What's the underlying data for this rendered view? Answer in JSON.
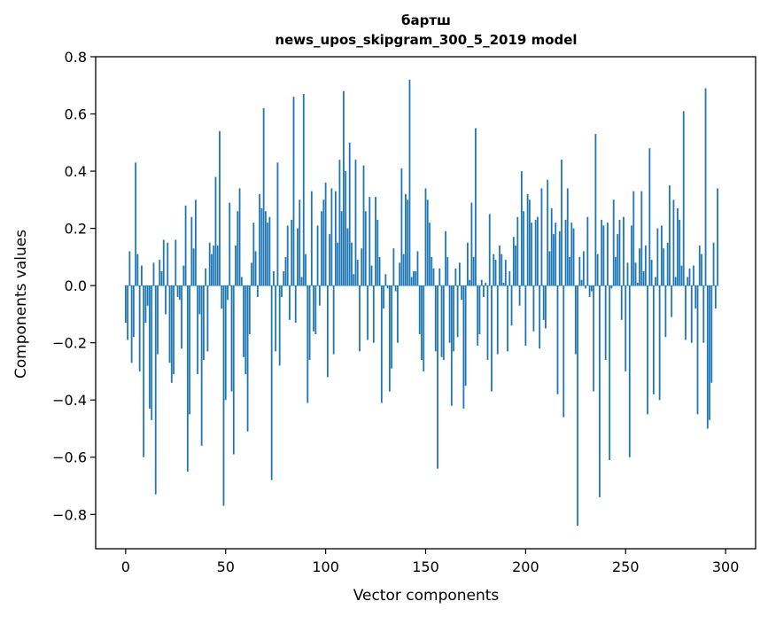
{
  "chart_data": {
    "type": "bar",
    "title": "бартш",
    "subtitle": "news_upos_skipgram_300_5_2019 model",
    "xlabel": "Vector components",
    "ylabel": "Components values",
    "xlim": [
      -15,
      315
    ],
    "ylim": [
      -0.92,
      0.8
    ],
    "xticks": [
      0,
      50,
      100,
      150,
      200,
      250,
      300
    ],
    "xtick_labels": [
      "0",
      "50",
      "100",
      "150",
      "200",
      "250",
      "300"
    ],
    "yticks": [
      -0.8,
      -0.6,
      -0.4,
      -0.2,
      0.0,
      0.2,
      0.4,
      0.6,
      0.8
    ],
    "ytick_labels": [
      "−0.8",
      "−0.6",
      "−0.4",
      "−0.2",
      "0.0",
      "0.2",
      "0.4",
      "0.6",
      "0.8"
    ],
    "bar_color": "#1f77b4",
    "grid": false,
    "values": [
      -0.13,
      -0.19,
      0.12,
      -0.27,
      -0.18,
      0.43,
      0.11,
      -0.3,
      0.07,
      -0.6,
      -0.13,
      -0.07,
      -0.43,
      -0.47,
      0.08,
      -0.73,
      -0.24,
      0.09,
      0.05,
      0.16,
      -0.1,
      0.15,
      -0.27,
      -0.34,
      -0.31,
      0.16,
      -0.04,
      -0.05,
      -0.22,
      0.07,
      0.28,
      -0.65,
      -0.45,
      0.24,
      0.13,
      0.3,
      -0.31,
      -0.1,
      -0.56,
      -0.26,
      0.06,
      -0.23,
      0.15,
      0.11,
      0.14,
      0.38,
      0.14,
      0.54,
      -0.08,
      -0.77,
      -0.4,
      -0.05,
      0.29,
      -0.37,
      -0.59,
      0.14,
      0.26,
      0.34,
      0.03,
      -0.25,
      -0.31,
      -0.51,
      -0.17,
      0.08,
      0.22,
      0.12,
      -0.04,
      0.32,
      0.27,
      0.62,
      0.26,
      0.22,
      0.24,
      -0.68,
      0.05,
      -0.23,
      0.43,
      -0.28,
      -0.04,
      0.05,
      0.1,
      0.21,
      -0.12,
      0.23,
      0.66,
      -0.13,
      0.2,
      0.3,
      0.03,
      0.67,
      0.11,
      -0.41,
      -0.26,
      0.33,
      -0.16,
      -0.17,
      0.21,
      -0.07,
      0.26,
      0.3,
      0.36,
      -0.32,
      0.18,
      0.34,
      -0.24,
      0.33,
      0.15,
      0.44,
      0.26,
      0.68,
      0.4,
      0.2,
      0.5,
      0.15,
      0.04,
      0.44,
      0.09,
      -0.23,
      0.13,
      0.42,
      0.26,
      -0.19,
      0.31,
      0.07,
      -0.2,
      0.31,
      0.23,
      0.1,
      -0.41,
      -0.08,
      0.04,
      -0.01,
      -0.37,
      -0.29,
      0.13,
      -0.02,
      -0.2,
      0.08,
      0.41,
      0.11,
      0.32,
      0.3,
      0.72,
      0.03,
      0.05,
      0.05,
      0.12,
      -0.17,
      -0.26,
      -0.3,
      0.34,
      0.3,
      0.22,
      0.1,
      0.06,
      -0.23,
      -0.64,
      0.06,
      -0.25,
      -0.26,
      0.19,
      0.1,
      -0.2,
      -0.42,
      -0.23,
      0.06,
      -0.18,
      0.08,
      -0.05,
      -0.43,
      -0.35,
      0.15,
      0.02,
      0.29,
      0.1,
      0.55,
      -0.21,
      -0.17,
      0.02,
      -0.04,
      0.01,
      -0.26,
      0.25,
      -0.37,
      0.11,
      0.09,
      -0.24,
      0.14,
      0.11,
      0.01,
      0.09,
      -0.23,
      0.05,
      -0.14,
      0.17,
      0.14,
      0.24,
      -0.07,
      0.4,
      0.26,
      -0.21,
      0.32,
      0.3,
      0.22,
      -0.16,
      0.23,
      0.24,
      -0.22,
      0.34,
      -0.12,
      -0.15,
      0.37,
      0.12,
      0.27,
      0.18,
      0.22,
      -0.38,
      0.19,
      0.44,
      -0.46,
      0.23,
      0.34,
      0.1,
      0.22,
      0.2,
      -0.24,
      -0.84,
      0.1,
      0.02,
      0.12,
      -0.01,
      0.24,
      -0.04,
      -0.02,
      -0.37,
      0.53,
      0.11,
      -0.74,
      0.23,
      0.21,
      -0.26,
      0.22,
      -0.61,
      -0.01,
      0.3,
      0.1,
      0.18,
      0.23,
      -0.12,
      0.24,
      -0.3,
      0.08,
      -0.6,
      0.21,
      0.33,
      0.08,
      0.01,
      0.13,
      0.33,
      0.05,
      0.14,
      -0.45,
      0.48,
      0.09,
      -0.38,
      0.03,
      0.2,
      -0.4,
      0.21,
      0.13,
      -0.18,
      0.15,
      0.35,
      -0.11,
      0.3,
      0.03,
      0.27,
      0.23,
      0.07,
      0.61,
      -0.19,
      0.03,
      0.06,
      -0.2,
      0.07,
      -0.08,
      -0.45,
      0.14,
      0.11,
      -0.2,
      0.69,
      -0.5,
      -0.47,
      -0.34,
      0.15,
      -0.08,
      0.34
    ]
  }
}
